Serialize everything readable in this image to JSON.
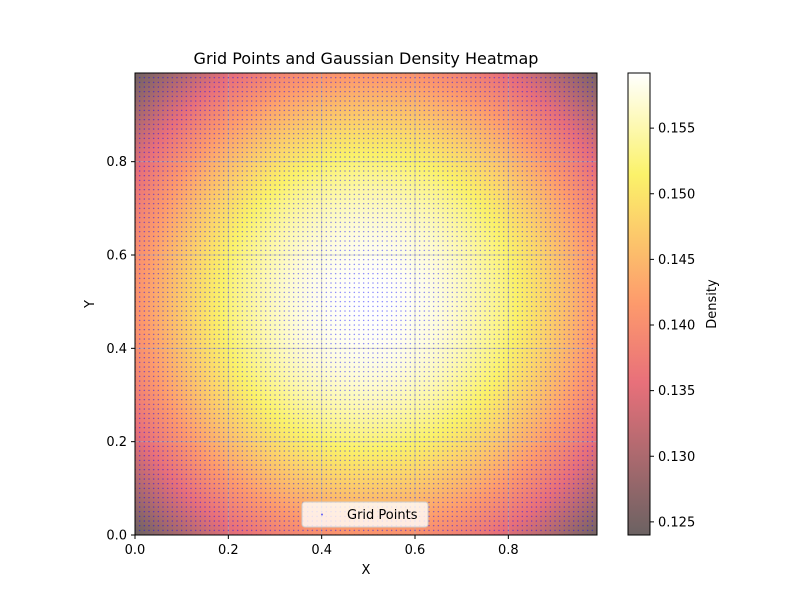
{
  "chart_data": {
    "type": "heatmap",
    "title": "Grid Points and Gaussian Density Heatmap",
    "xlabel": "X",
    "ylabel": "Y",
    "xlim": [
      0,
      0.99
    ],
    "ylim": [
      0,
      0.99
    ],
    "x_ticks": [
      "0.0",
      "0.2",
      "0.4",
      "0.6",
      "0.8"
    ],
    "y_ticks": [
      "0.0",
      "0.2",
      "0.4",
      "0.6",
      "0.8"
    ],
    "x_tick_values": [
      0,
      0.2,
      0.4,
      0.6,
      0.8
    ],
    "y_tick_values": [
      0,
      0.2,
      0.4,
      0.6,
      0.8
    ],
    "grid": true,
    "density": {
      "distribution": "gaussian",
      "center": [
        0.5,
        0.5
      ],
      "sigma": 1,
      "peak": 0.1592,
      "corner_min": 0.124
    },
    "points": {
      "name": "Grid Points",
      "x_start": 0,
      "x_end": 0.99,
      "x_step": 0.01,
      "y_start": 0,
      "y_end": 0.99,
      "y_step": 0.01,
      "color": "#0000ff"
    },
    "legend": {
      "placement": "lower center",
      "entries": [
        "Grid Points"
      ]
    },
    "colorbar": {
      "label": "Density",
      "min": 0.124,
      "max": 0.1592,
      "ticks": [
        "0.125",
        "0.130",
        "0.135",
        "0.140",
        "0.145",
        "0.150",
        "0.155"
      ],
      "tick_values": [
        0.125,
        0.13,
        0.135,
        0.14,
        0.145,
        0.15,
        0.155
      ],
      "colormap": "gnuplot2-like (dark to magenta-red to yellow to white), alpha 0.6"
    }
  }
}
